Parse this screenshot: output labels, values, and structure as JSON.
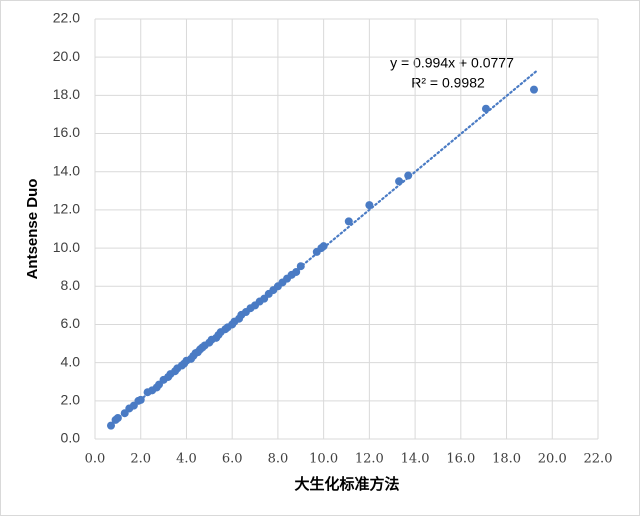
{
  "chart_data": {
    "type": "scatter",
    "x_label": "大生化标准方法",
    "y_label": "Antsense Duo",
    "color": "#4a7bc4",
    "grid": true,
    "xlim": [
      0,
      22
    ],
    "ylim": [
      0,
      22
    ],
    "xticks": [
      {
        "value": 0,
        "label": "0.0"
      },
      {
        "value": 2,
        "label": "2.0"
      },
      {
        "value": 4,
        "label": "4.0"
      },
      {
        "value": 6,
        "label": "6.0"
      },
      {
        "value": 8,
        "label": "8.0"
      },
      {
        "value": 10,
        "label": "10.0"
      },
      {
        "value": 12,
        "label": "12.0"
      },
      {
        "value": 14,
        "label": "14.0"
      },
      {
        "value": 16,
        "label": "16.0"
      },
      {
        "value": 18,
        "label": "18.0"
      },
      {
        "value": 20,
        "label": "20.0"
      },
      {
        "value": 22,
        "label": "22.0"
      }
    ],
    "yticks": [
      {
        "value": 0,
        "label": "0.0"
      },
      {
        "value": 2,
        "label": "2.0"
      },
      {
        "value": 4,
        "label": "4.0"
      },
      {
        "value": 6,
        "label": "6.0"
      },
      {
        "value": 8,
        "label": "8.0"
      },
      {
        "value": 10,
        "label": "10.0"
      },
      {
        "value": 12,
        "label": "12.0"
      },
      {
        "value": 14,
        "label": "14.0"
      },
      {
        "value": 16,
        "label": "16.0"
      },
      {
        "value": 18,
        "label": "18.0"
      },
      {
        "value": 20,
        "label": "20.0"
      },
      {
        "value": 22,
        "label": "22.0"
      }
    ],
    "x": [
      0.7,
      0.9,
      1.0,
      1.3,
      1.5,
      1.7,
      1.9,
      2.0,
      2.3,
      2.5,
      2.7,
      2.8,
      3.0,
      3.2,
      3.3,
      3.5,
      3.6,
      3.8,
      3.9,
      4.0,
      4.2,
      4.3,
      4.4,
      4.5,
      4.6,
      4.7,
      4.8,
      5.0,
      5.1,
      5.3,
      5.4,
      5.5,
      5.7,
      5.8,
      6.0,
      6.1,
      6.3,
      6.4,
      6.6,
      6.8,
      7.0,
      7.2,
      7.4,
      7.6,
      7.8,
      8.0,
      8.2,
      8.4,
      8.6,
      8.8,
      9.0,
      9.7,
      9.9,
      10.0,
      11.1,
      12.0,
      13.3,
      13.7,
      17.1,
      19.2
    ],
    "values": [
      0.7,
      1.0,
      1.1,
      1.35,
      1.6,
      1.75,
      2.0,
      2.05,
      2.45,
      2.55,
      2.7,
      2.85,
      3.1,
      3.25,
      3.4,
      3.55,
      3.7,
      3.85,
      3.95,
      4.1,
      4.2,
      4.35,
      4.5,
      4.55,
      4.7,
      4.8,
      4.9,
      5.05,
      5.2,
      5.3,
      5.45,
      5.6,
      5.75,
      5.85,
      6.0,
      6.15,
      6.3,
      6.5,
      6.65,
      6.85,
      7.0,
      7.2,
      7.35,
      7.6,
      7.8,
      8.0,
      8.2,
      8.4,
      8.6,
      8.75,
      9.05,
      9.8,
      10.0,
      10.1,
      11.4,
      12.25,
      13.5,
      13.8,
      17.3,
      18.3
    ],
    "trendline": {
      "slope": 0.994,
      "intercept": 0.0777,
      "x": [
        0.6,
        19.3
      ],
      "label": "y = 0.994x + 0.0777",
      "r2_label": "R² = 0.9982"
    }
  }
}
